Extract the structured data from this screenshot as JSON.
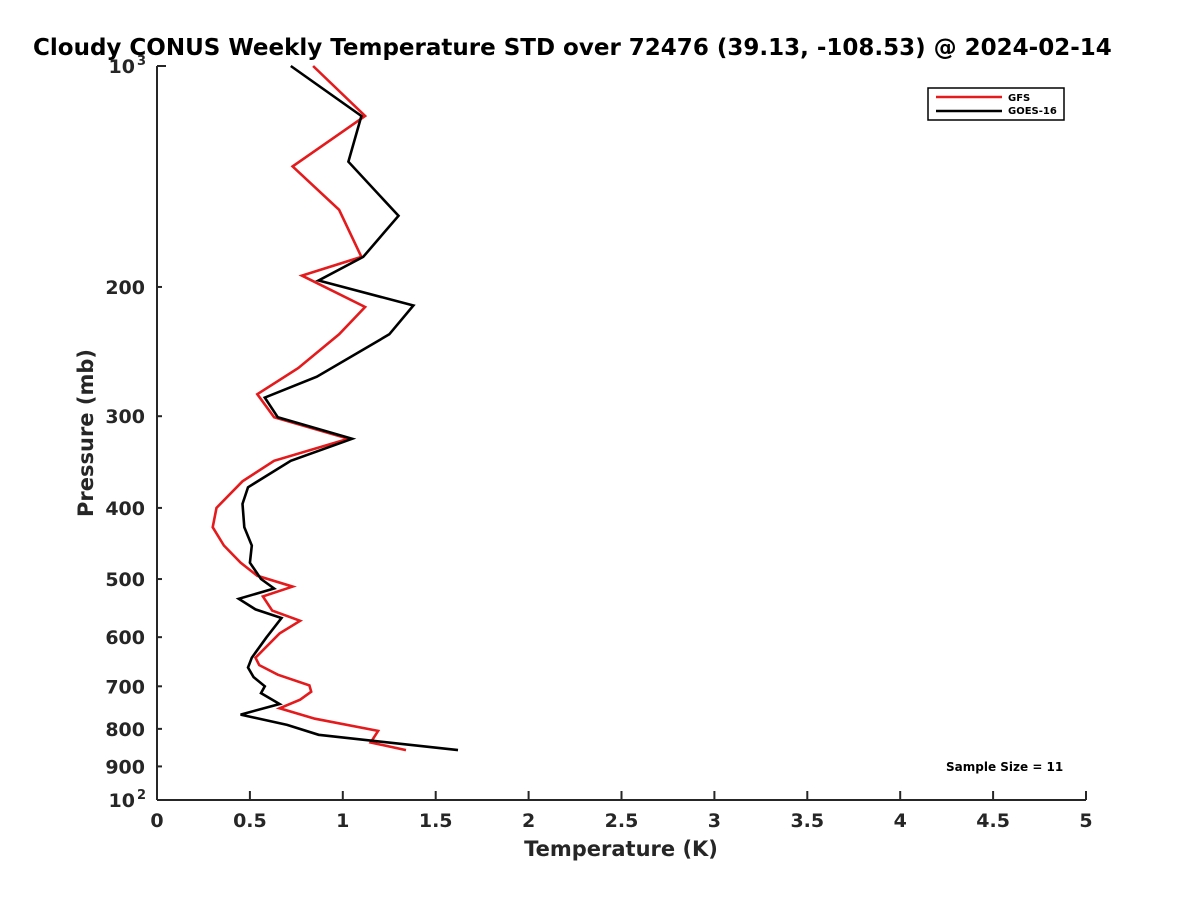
{
  "chart_data": {
    "type": "line",
    "title": "Cloudy CONUS Weekly Temperature STD over 72476 (39.13, -108.53) @ 2024-02-14",
    "xlabel": "Temperature (K)",
    "ylabel": "Pressure (mb)",
    "xlim": [
      0,
      5
    ],
    "ylim": [
      100,
      1000
    ],
    "yscale": "log",
    "y_reversed": true,
    "grid": false,
    "legend_position": "top-right",
    "x_ticks": [
      0,
      0.5,
      1,
      1.5,
      2,
      2.5,
      3,
      3.5,
      4,
      4.5,
      5
    ],
    "x_tick_labels": [
      "0",
      "0.5",
      "1",
      "1.5",
      "2",
      "2.5",
      "3",
      "3.5",
      "4",
      "4.5",
      "5"
    ],
    "y_ticks": [
      200,
      300,
      400,
      500,
      600,
      700,
      800,
      900
    ],
    "y_tick_labels": [
      "200",
      "300",
      "400",
      "500",
      "600",
      "700",
      "800",
      "900"
    ],
    "y_min_label": {
      "base": "10",
      "exp": "3"
    },
    "y_max_label": {
      "base": "10",
      "exp": "2"
    },
    "annotation": "Sample Size = 11",
    "series": [
      {
        "name": "GFS",
        "color": "#e41a1c",
        "x": [
          0.84,
          1.12,
          0.73,
          0.98,
          1.1,
          0.78,
          1.12,
          0.98,
          0.76,
          0.54,
          0.63,
          1.03,
          0.63,
          0.46,
          0.32,
          0.3,
          0.36,
          0.45,
          0.54,
          0.73,
          0.57,
          0.62,
          0.77,
          0.66,
          0.53,
          0.55,
          0.65,
          0.82,
          0.83,
          0.77,
          0.66,
          0.85,
          1.19,
          1.17,
          1.15,
          1.34
        ],
        "y": [
          100,
          117,
          137,
          157,
          182,
          193,
          213,
          232,
          258,
          280,
          301,
          322,
          345,
          368,
          400,
          425,
          450,
          475,
          495,
          512,
          528,
          552,
          570,
          593,
          640,
          655,
          675,
          698,
          712,
          730,
          750,
          775,
          805,
          820,
          835,
          855
        ]
      },
      {
        "name": "GOES-16",
        "color": "#000000",
        "x": [
          0.72,
          1.1,
          1.03,
          1.3,
          1.11,
          0.87,
          1.38,
          1.25,
          0.86,
          0.58,
          0.65,
          1.05,
          0.72,
          0.49,
          0.46,
          0.47,
          0.51,
          0.5,
          0.56,
          0.63,
          0.44,
          0.53,
          0.67,
          0.59,
          0.51,
          0.49,
          0.52,
          0.58,
          0.56,
          0.66,
          0.45,
          0.7,
          0.87,
          1.62
        ],
        "y": [
          100,
          117,
          135,
          160,
          182,
          196,
          212,
          232,
          265,
          283,
          301,
          322,
          345,
          375,
          395,
          425,
          450,
          475,
          500,
          515,
          532,
          550,
          565,
          600,
          640,
          660,
          680,
          700,
          715,
          740,
          765,
          790,
          815,
          855
        ]
      }
    ]
  }
}
